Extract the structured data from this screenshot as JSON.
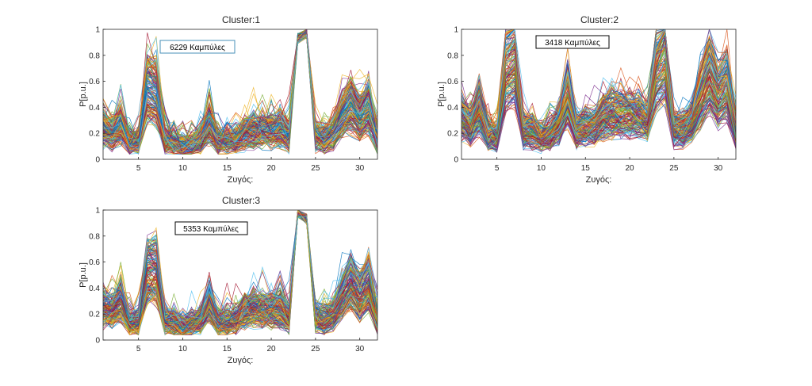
{
  "chart_data": [
    {
      "type": "line",
      "title": "Cluster:1",
      "xlabel": "Ζυγός:",
      "ylabel": "P[p.u.]",
      "xlim": [
        1,
        32
      ],
      "ylim": [
        0,
        1
      ],
      "xticks": [
        5,
        10,
        15,
        20,
        25,
        30
      ],
      "yticks": [
        0,
        0.2,
        0.4,
        0.6,
        0.8,
        1
      ],
      "annotation": "6229 Καμπύλες",
      "annotation_border": "#4a90b8",
      "grid": false,
      "x": [
        1,
        2,
        3,
        4,
        5,
        6,
        7,
        8,
        9,
        10,
        11,
        12,
        13,
        14,
        15,
        16,
        17,
        18,
        19,
        20,
        21,
        22,
        23,
        24,
        25,
        26,
        27,
        28,
        29,
        30,
        31,
        32
      ],
      "profile": [
        0.24,
        0.2,
        0.28,
        0.13,
        0.14,
        0.55,
        0.52,
        0.15,
        0.13,
        0.1,
        0.11,
        0.16,
        0.28,
        0.14,
        0.14,
        0.15,
        0.2,
        0.22,
        0.22,
        0.22,
        0.24,
        0.18,
        0.93,
        0.97,
        0.18,
        0.16,
        0.2,
        0.34,
        0.42,
        0.32,
        0.4,
        0.16
      ]
    },
    {
      "type": "line",
      "title": "Cluster:2",
      "xlabel": "Ζυγός:",
      "ylabel": "P[p.u.]",
      "xlim": [
        1,
        32
      ],
      "ylim": [
        0,
        1
      ],
      "xticks": [
        5,
        10,
        15,
        20,
        25,
        30
      ],
      "yticks": [
        0,
        0.2,
        0.4,
        0.6,
        0.8,
        1
      ],
      "annotation": "3418 Καμπύλες",
      "annotation_border": "#000000",
      "grid": false,
      "x": [
        1,
        2,
        3,
        4,
        5,
        6,
        7,
        8,
        9,
        10,
        11,
        12,
        13,
        14,
        15,
        16,
        17,
        18,
        19,
        20,
        21,
        22,
        23,
        24,
        25,
        26,
        27,
        28,
        29,
        30,
        31,
        32
      ],
      "profile": [
        0.32,
        0.26,
        0.4,
        0.2,
        0.18,
        0.72,
        0.78,
        0.22,
        0.22,
        0.17,
        0.2,
        0.28,
        0.5,
        0.22,
        0.26,
        0.26,
        0.34,
        0.36,
        0.36,
        0.36,
        0.34,
        0.3,
        0.72,
        0.82,
        0.24,
        0.24,
        0.3,
        0.5,
        0.66,
        0.5,
        0.58,
        0.2
      ]
    },
    {
      "type": "line",
      "title": "Cluster:3",
      "xlabel": "Ζυγός:",
      "ylabel": "P[p.u.]",
      "xlim": [
        1,
        32
      ],
      "ylim": [
        0,
        1
      ],
      "xticks": [
        5,
        10,
        15,
        20,
        25,
        30
      ],
      "yticks": [
        0,
        0.2,
        0.4,
        0.6,
        0.8,
        1
      ],
      "annotation": "5353 Καμπύλες",
      "annotation_border": "#000000",
      "grid": false,
      "x": [
        1,
        2,
        3,
        4,
        5,
        6,
        7,
        8,
        9,
        10,
        11,
        12,
        13,
        14,
        15,
        16,
        17,
        18,
        19,
        20,
        21,
        22,
        23,
        24,
        25,
        26,
        27,
        28,
        29,
        30,
        31,
        32
      ],
      "profile": [
        0.24,
        0.22,
        0.3,
        0.13,
        0.14,
        0.55,
        0.55,
        0.15,
        0.14,
        0.1,
        0.12,
        0.16,
        0.3,
        0.14,
        0.14,
        0.16,
        0.22,
        0.24,
        0.24,
        0.24,
        0.24,
        0.18,
        0.98,
        0.93,
        0.18,
        0.16,
        0.2,
        0.34,
        0.45,
        0.34,
        0.44,
        0.16
      ]
    }
  ],
  "series_colors": [
    "#0072BD",
    "#D95319",
    "#EDB120",
    "#7E2F8E",
    "#77AC30",
    "#4DBEEE",
    "#A2142F"
  ]
}
